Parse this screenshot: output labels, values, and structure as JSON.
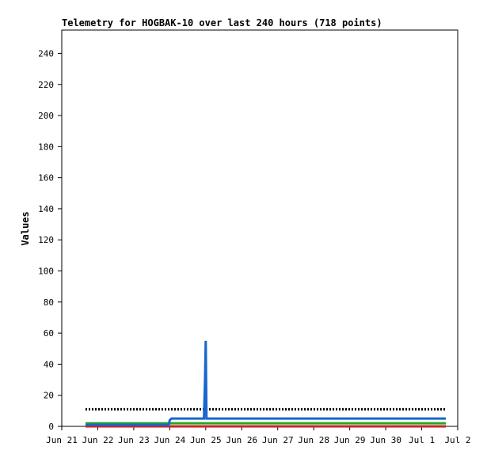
{
  "chart_data": {
    "type": "line",
    "title": "Telemetry for HOGBAK-10 over last 240 hours (718 points)",
    "y_label": "Values",
    "xlim": [
      0,
      11
    ],
    "ylim": [
      0,
      255
    ],
    "xticks": [
      {
        "value": 0,
        "label": "Jun 21"
      },
      {
        "value": 1,
        "label": "Jun 22"
      },
      {
        "value": 2,
        "label": "Jun 23"
      },
      {
        "value": 3,
        "label": "Jun 24"
      },
      {
        "value": 4,
        "label": "Jun 25"
      },
      {
        "value": 5,
        "label": "Jun 26"
      },
      {
        "value": 6,
        "label": "Jun 27"
      },
      {
        "value": 7,
        "label": "Jun 28"
      },
      {
        "value": 8,
        "label": "Jun 29"
      },
      {
        "value": 9,
        "label": "Jun 30"
      },
      {
        "value": 10,
        "label": "Jul 1"
      },
      {
        "value": 11,
        "label": "Jul 2"
      }
    ],
    "yticks": [
      0,
      20,
      40,
      60,
      80,
      100,
      120,
      140,
      160,
      180,
      200,
      220,
      240
    ],
    "grid": false,
    "series": [
      {
        "color": "#000000",
        "dashed": true,
        "x": [
          0.66,
          10.67
        ],
        "values": [
          11,
          11
        ]
      },
      {
        "color": "#22aa22",
        "x": [
          0.66,
          10.67
        ],
        "values": [
          2,
          2
        ]
      },
      {
        "color": "#cc2222",
        "x": [
          0.66,
          10.67
        ],
        "values": [
          0,
          0
        ]
      },
      {
        "color": "#1a66cc",
        "x": [
          0.66,
          2.97,
          3.0,
          3.05,
          3.95,
          3.98,
          4.0,
          4.02,
          10.67
        ],
        "values": [
          1,
          1,
          4,
          5,
          5,
          30,
          55,
          5,
          5
        ]
      }
    ]
  }
}
